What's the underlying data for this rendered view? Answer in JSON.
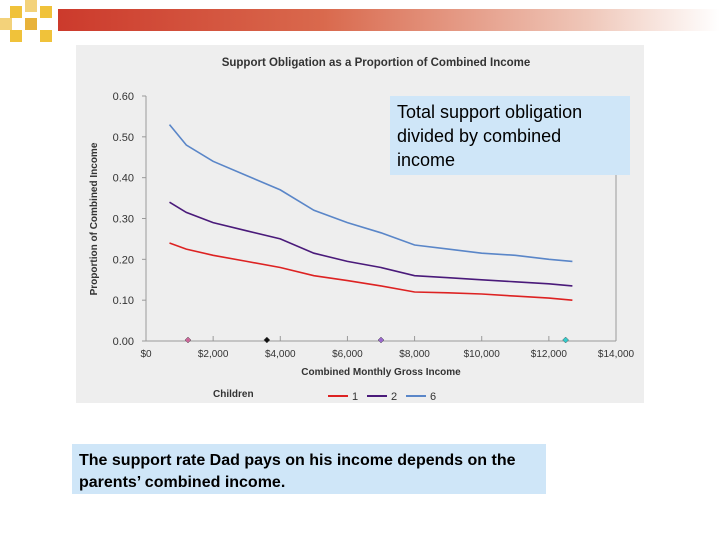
{
  "chart_data": {
    "type": "line",
    "title": "Support Obligation as a Proportion of Combined Income",
    "xlabel": "Combined Monthly Gross Income",
    "ylabel": "Proportion of Combined Income",
    "xlim": [
      0,
      14000
    ],
    "ylim": [
      0,
      0.6
    ],
    "x_ticks": [
      0,
      2000,
      4000,
      6000,
      8000,
      10000,
      12000,
      14000
    ],
    "x_tick_labels": [
      "$0",
      "$2,000",
      "$4,000",
      "$6,000",
      "$8,000",
      "$10,000",
      "$12,000",
      "$14,000"
    ],
    "y_ticks": [
      0,
      0.1,
      0.2,
      0.3,
      0.4,
      0.5,
      0.6
    ],
    "y_tick_labels": [
      "0.00",
      "0.10",
      "0.20",
      "0.30",
      "0.40",
      "0.50",
      "0.60"
    ],
    "grid": false,
    "legend_title": "Children",
    "legend_position": "bottom",
    "series": [
      {
        "name": "1",
        "color": "#dd2222",
        "x": [
          700,
          1200,
          2000,
          3000,
          4000,
          5000,
          6000,
          7000,
          8000,
          9000,
          10000,
          11000,
          12000,
          12700
        ],
        "values": [
          0.24,
          0.225,
          0.21,
          0.195,
          0.18,
          0.16,
          0.148,
          0.135,
          0.12,
          0.118,
          0.115,
          0.11,
          0.105,
          0.1
        ]
      },
      {
        "name": "2",
        "color": "#4a1a7a",
        "x": [
          700,
          1200,
          2000,
          3000,
          4000,
          5000,
          6000,
          7000,
          8000,
          9000,
          10000,
          11000,
          12000,
          12700
        ],
        "values": [
          0.34,
          0.315,
          0.29,
          0.27,
          0.25,
          0.215,
          0.195,
          0.18,
          0.16,
          0.155,
          0.15,
          0.145,
          0.14,
          0.135
        ]
      },
      {
        "name": "6",
        "color": "#5a86c8",
        "x": [
          700,
          1200,
          2000,
          3000,
          4000,
          5000,
          6000,
          7000,
          8000,
          9000,
          10000,
          11000,
          12000,
          12700
        ],
        "values": [
          0.53,
          0.48,
          0.44,
          0.405,
          0.37,
          0.32,
          0.29,
          0.265,
          0.235,
          0.225,
          0.215,
          0.21,
          0.2,
          0.195
        ]
      }
    ],
    "markers": [
      {
        "x": 1250,
        "color": "#cc6699"
      },
      {
        "x": 3600,
        "color": "#111111"
      },
      {
        "x": 7000,
        "color": "#9966cc"
      },
      {
        "x": 12500,
        "color": "#33cccc"
      }
    ]
  },
  "callout": {
    "text": "Total support obligation divided by combined income"
  },
  "caption": {
    "text": "The support rate Dad pays on his income depends on the parents’ combined income."
  }
}
